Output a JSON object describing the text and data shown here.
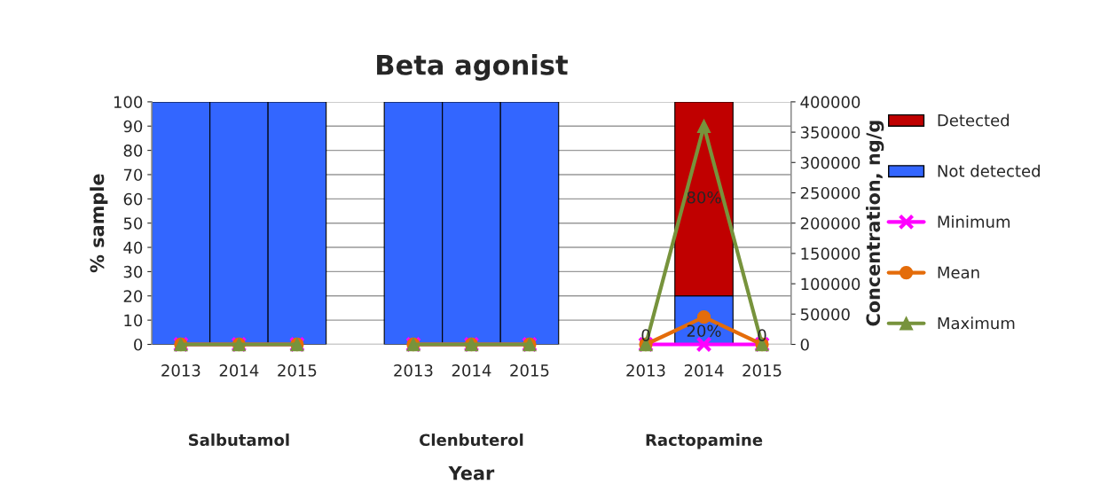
{
  "chart_data": {
    "type": "bar",
    "title": "Beta agonist",
    "xlabel": "Year",
    "ylabel": "% sample",
    "y2label": "Concentration, ng/g",
    "categories": [
      "2013",
      "2014",
      "2015",
      null,
      "2013",
      "2014",
      "2015",
      null,
      "2013",
      "2014",
      "2015"
    ],
    "annotations": [
      "Salbutamol",
      "Clenbuterol",
      "Ractopamine"
    ],
    "stacked": true,
    "series": [
      {
        "name": "Not detected",
        "color": "#3366ff",
        "values": [
          100,
          100,
          100,
          null,
          100,
          100,
          100,
          null,
          0,
          20,
          0
        ],
        "value_labels": [
          null,
          null,
          null,
          null,
          null,
          null,
          null,
          null,
          "0",
          "20%",
          "0"
        ]
      },
      {
        "name": "Detected",
        "color": "#c00000",
        "values": [
          null,
          null,
          null,
          null,
          null,
          null,
          null,
          null,
          null,
          80,
          null
        ],
        "value_labels": [
          null,
          null,
          null,
          null,
          null,
          null,
          null,
          null,
          null,
          "80%",
          null
        ]
      },
      {
        "name": "Minimum",
        "type": "line",
        "axis": "y2",
        "color": "#ff00ff",
        "marker": "cross",
        "values": [
          0,
          0,
          0,
          null,
          0,
          0,
          0,
          null,
          0,
          0,
          0
        ]
      },
      {
        "name": "Mean",
        "type": "line",
        "axis": "y2",
        "color": "#e46c0a",
        "marker": "circle",
        "values": [
          0,
          0,
          0,
          null,
          0,
          0,
          0,
          null,
          0,
          45000,
          0
        ]
      },
      {
        "name": "Maximum",
        "type": "line",
        "axis": "y2",
        "color": "#77933c",
        "marker": "triangle",
        "values": [
          0,
          0,
          0,
          null,
          0,
          0,
          0,
          null,
          0,
          360000,
          0
        ]
      }
    ],
    "ylim": [
      0,
      100
    ],
    "yticks": [
      0,
      10,
      20,
      30,
      40,
      50,
      60,
      70,
      80,
      90,
      100
    ],
    "y2lim": [
      0,
      400000
    ],
    "y2ticks": [
      0,
      50000,
      100000,
      150000,
      200000,
      250000,
      300000,
      350000,
      400000
    ],
    "grid": "y",
    "legend": "right"
  }
}
